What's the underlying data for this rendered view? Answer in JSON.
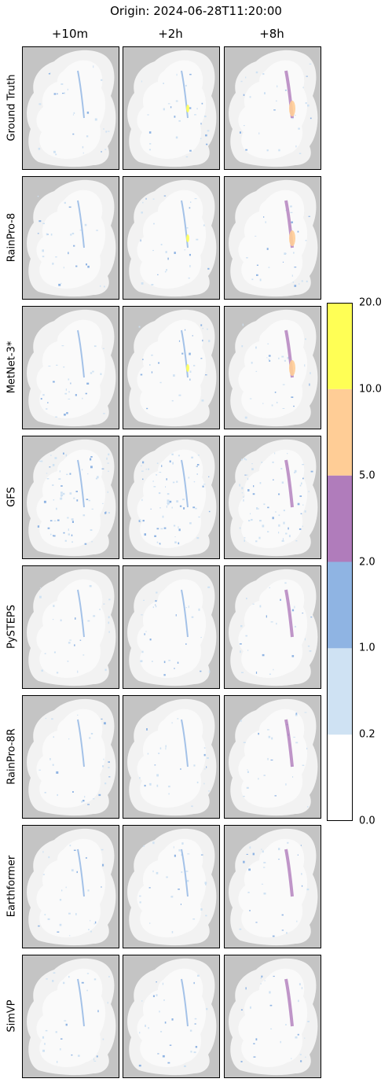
{
  "chart_data": {
    "type": "heatmap",
    "title": "Origin: 2024-06-28T11:20:00",
    "lead_times": [
      "+10m",
      "+2h",
      "+8h"
    ],
    "models": [
      "Ground Truth",
      "RainPro-8",
      "MetNet-3*",
      "GFS",
      "PySTEPS",
      "RainPro-8R",
      "Earthformer",
      "SimVP"
    ],
    "colorbar": {
      "ticks": [
        "0.0",
        "0.2",
        "1.0",
        "2.0",
        "5.0",
        "10.0",
        "20.0"
      ],
      "bins": [
        {
          "from": 0.0,
          "to": 0.2,
          "color": "#ffffff"
        },
        {
          "from": 0.2,
          "to": 1.0,
          "color": "#cfe2f3"
        },
        {
          "from": 1.0,
          "to": 2.0,
          "color": "#8fb4e3"
        },
        {
          "from": 2.0,
          "to": 5.0,
          "color": "#b07cbb"
        },
        {
          "from": 5.0,
          "to": 10.0,
          "color": "#ffcd96"
        },
        {
          "from": 10.0,
          "to": 20.0,
          "color": "#ffff55"
        }
      ]
    },
    "colors": {
      "no_data": "#c4c4c4",
      "land": "#f2f2f2",
      "coverage": "#fafafa"
    }
  }
}
